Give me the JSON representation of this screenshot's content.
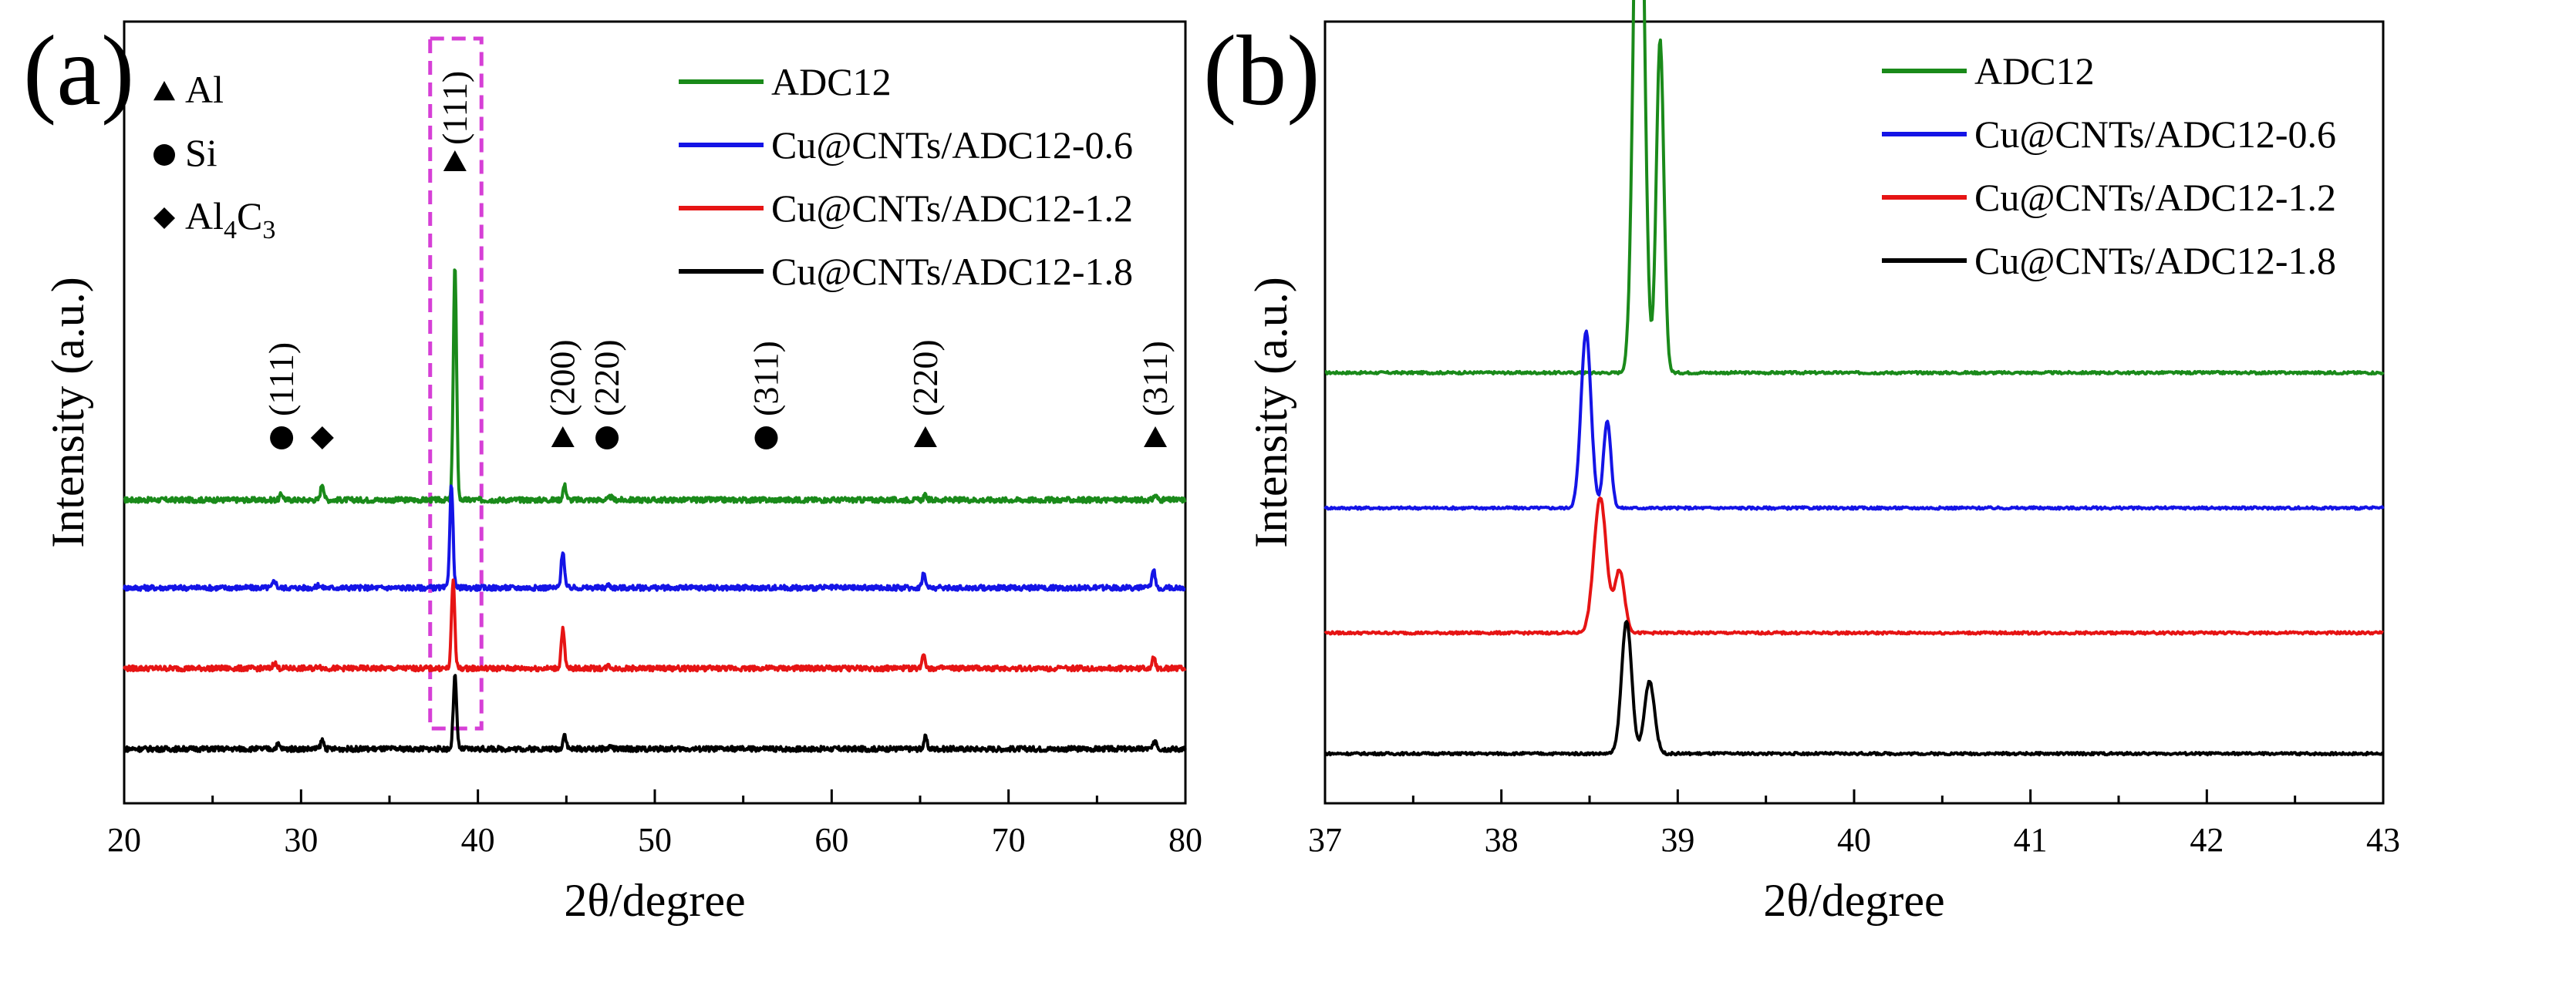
{
  "chart_data": [
    {
      "panel_label": "(a)",
      "type": "line",
      "xlabel": "2θ/degree",
      "ylabel": "Intensity (a.u.)",
      "xlim": [
        20,
        80
      ],
      "xticks": [
        "20",
        "30",
        "40",
        "50",
        "60",
        "70",
        "80"
      ],
      "phase_legend": [
        {
          "symbol": "triangle",
          "label": "Al"
        },
        {
          "symbol": "circle",
          "label": "Si"
        },
        {
          "symbol": "diamond",
          "label": "Al",
          "sub": "4",
          "mid": "C",
          "sub2": "3"
        }
      ],
      "highlight_box": {
        "x_from": 37.3,
        "x_to": 40.2,
        "color": "#d63fd6"
      },
      "peak_labels": [
        {
          "x": 38.7,
          "symbol": "triangle",
          "label": "(111)"
        },
        {
          "x": 28.9,
          "symbol": "circle",
          "label": "(111)"
        },
        {
          "x": 31.2,
          "symbol": "diamond",
          "label": ""
        },
        {
          "x": 44.8,
          "symbol": "triangle",
          "label": "(200)"
        },
        {
          "x": 47.3,
          "symbol": "circle",
          "label": "(220)"
        },
        {
          "x": 56.3,
          "symbol": "circle",
          "label": "(311)"
        },
        {
          "x": 65.3,
          "symbol": "triangle",
          "label": "(220)"
        },
        {
          "x": 78.3,
          "symbol": "triangle",
          "label": "(311)"
        }
      ],
      "series": [
        {
          "name": "ADC12",
          "color": "#1a8a1a",
          "baseline": 1.85,
          "peaks": [
            [
              28.9,
              0.04
            ],
            [
              31.2,
              0.11
            ],
            [
              38.7,
              1.6
            ],
            [
              44.9,
              0.1
            ],
            [
              47.5,
              0.02
            ],
            [
              65.3,
              0.03
            ],
            [
              78.3,
              0.03
            ]
          ]
        },
        {
          "name": "Cu@CNTs/ADC12-0.6",
          "color": "#1414e6",
          "baseline": 1.25,
          "peaks": [
            [
              28.5,
              0.05
            ],
            [
              31.0,
              0.02
            ],
            [
              38.5,
              0.7
            ],
            [
              44.8,
              0.25
            ],
            [
              47.4,
              0.02
            ],
            [
              65.2,
              0.1
            ],
            [
              78.2,
              0.12
            ]
          ]
        },
        {
          "name": "Cu@CNTs/ADC12-1.2",
          "color": "#e61414",
          "baseline": 0.7,
          "peaks": [
            [
              28.5,
              0.04
            ],
            [
              31.0,
              0.02
            ],
            [
              38.6,
              0.6
            ],
            [
              44.8,
              0.27
            ],
            [
              47.4,
              0.02
            ],
            [
              65.2,
              0.1
            ],
            [
              78.2,
              0.08
            ]
          ]
        },
        {
          "name": "Cu@CNTs/ADC12-1.8",
          "color": "#000000",
          "baseline": 0.15,
          "peaks": [
            [
              28.7,
              0.03
            ],
            [
              31.2,
              0.06
            ],
            [
              38.7,
              0.5
            ],
            [
              44.9,
              0.1
            ],
            [
              47.5,
              0.02
            ],
            [
              65.3,
              0.08
            ],
            [
              78.3,
              0.06
            ]
          ]
        }
      ]
    },
    {
      "panel_label": "(b)",
      "type": "line",
      "xlabel": "2θ/degree",
      "ylabel": "Intensity (a.u.)",
      "xlim": [
        37,
        43
      ],
      "xticks": [
        "37",
        "38",
        "39",
        "40",
        "41",
        "42",
        "43"
      ],
      "series": [
        {
          "name": "ADC12",
          "color": "#1a8a1a",
          "baseline": 1.95,
          "peaks": [
            [
              38.78,
              3.2,
              0.04
            ],
            [
              38.9,
              1.6,
              0.03
            ]
          ]
        },
        {
          "name": "Cu@CNTs/ADC12-0.6",
          "color": "#1414e6",
          "baseline": 1.3,
          "peaks": [
            [
              38.48,
              0.85,
              0.04
            ],
            [
              38.6,
              0.42,
              0.03
            ]
          ]
        },
        {
          "name": "Cu@CNTs/ADC12-1.2",
          "color": "#e61414",
          "baseline": 0.7,
          "peaks": [
            [
              38.56,
              0.65,
              0.05
            ],
            [
              38.67,
              0.3,
              0.04
            ]
          ]
        },
        {
          "name": "Cu@CNTs/ADC12-1.8",
          "color": "#000000",
          "baseline": 0.12,
          "peaks": [
            [
              38.71,
              0.64,
              0.04
            ],
            [
              38.84,
              0.35,
              0.04
            ]
          ]
        }
      ]
    }
  ]
}
